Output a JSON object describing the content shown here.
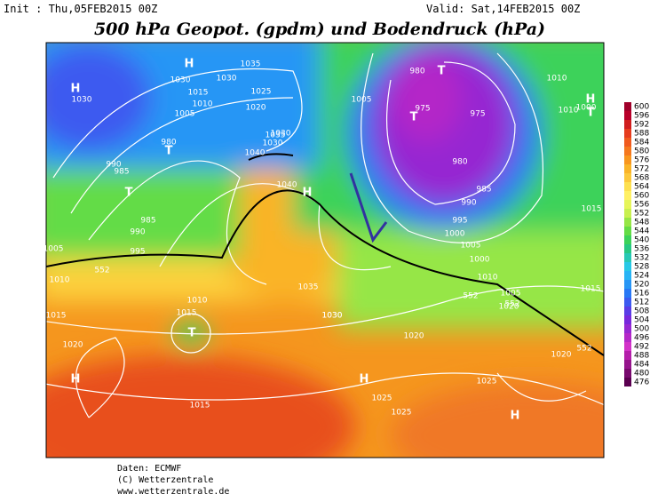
{
  "header": {
    "init": "Init : Thu,05FEB2015 00Z",
    "valid": "Valid: Sat,14FEB2015 00Z",
    "title": "500 hPa Geopot. (gpdm) und Bodendruck (hPa)"
  },
  "map_labels": [
    "H",
    "1030",
    "1030",
    "1030",
    "1035",
    "1030",
    "1025",
    "1020",
    "1015",
    "1010",
    "1005",
    "990",
    "985",
    "980",
    "H",
    "T",
    "995",
    "990",
    "985",
    "T",
    "1040",
    "1035",
    "1030",
    "1040",
    "H",
    "1035",
    "1030",
    "1005",
    "980",
    "975",
    "T",
    "975",
    "980",
    "985",
    "990",
    "995",
    "1000",
    "1005",
    "T",
    "1010",
    "H",
    "T",
    "1000",
    "1015",
    "1010",
    "1005",
    "1015",
    "1020",
    "1000",
    "1005",
    "1010",
    "1010",
    "1015",
    "T",
    "1015",
    "1020",
    "1025",
    "1025",
    "H",
    "1020",
    "1025",
    "1015",
    "H",
    "H",
    "1020",
    "552",
    "552",
    "552",
    "552",
    "1030",
    "1010"
  ],
  "colorbar": {
    "ticks": [
      600,
      596,
      592,
      588,
      584,
      580,
      576,
      572,
      568,
      564,
      560,
      556,
      552,
      548,
      544,
      540,
      536,
      532,
      528,
      524,
      520,
      516,
      512,
      508,
      504,
      500,
      496,
      492,
      488,
      484,
      480,
      476
    ],
    "colors": [
      "#a0002a",
      "#b8002a",
      "#d01e1e",
      "#e63c1e",
      "#f05a1e",
      "#f5781e",
      "#f8961e",
      "#fab428",
      "#fcc83c",
      "#fde050",
      "#fff064",
      "#e6f55a",
      "#c8f050",
      "#96e646",
      "#64dc46",
      "#3cd25a",
      "#28c882",
      "#28c8b4",
      "#28c8e6",
      "#28b4f5",
      "#2896f5",
      "#2878f5",
      "#3c5af0",
      "#5a3ce6",
      "#7828dc",
      "#9628d2",
      "#b428c8",
      "#d232c8",
      "#b41eaa",
      "#96148c",
      "#780a6e",
      "#5a0050"
    ]
  },
  "footer": [
    "Daten: ECMWF",
    "(C) Wetterzentrale",
    "www.wetterzentrale.de"
  ]
}
